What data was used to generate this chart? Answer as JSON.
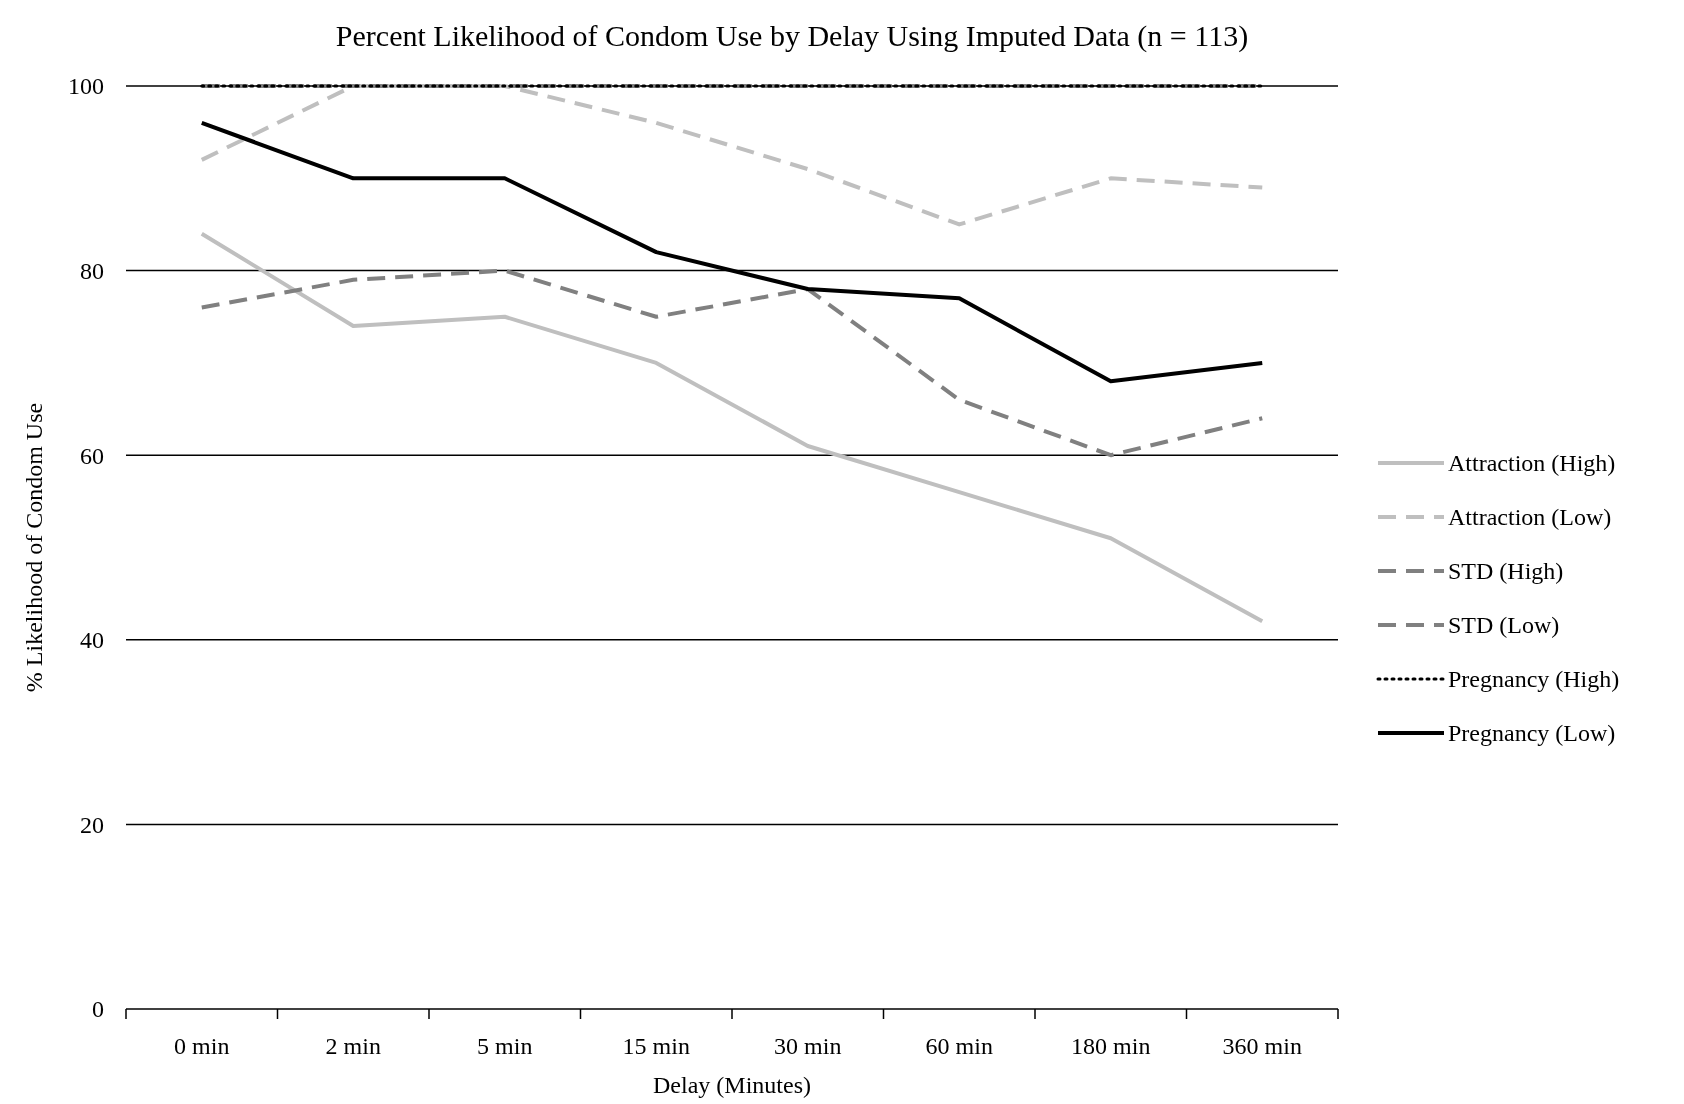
{
  "chart_data": {
    "type": "line",
    "title": "Percent Likelihood of Condom Use by Delay Using Imputed Data (n = 113)",
    "xlabel": "Delay (Minutes)",
    "ylabel": "% Likelihood of Condom Use",
    "categories": [
      "0 min",
      "2 min",
      "5 min",
      "15 min",
      "30 min",
      "60 min",
      "180 min",
      "360 min"
    ],
    "ylim": [
      0,
      100
    ],
    "yticks": [
      0,
      20,
      40,
      60,
      80,
      100
    ],
    "grid": "y",
    "legend": "right",
    "marker": "none",
    "series": [
      {
        "name": "Attraction (High)",
        "color": "#bfbfbf",
        "line_style": "solid",
        "values": [
          84,
          74,
          75,
          70,
          61,
          56,
          51,
          42
        ]
      },
      {
        "name": "Attraction (Low)",
        "color": "#bfbfbf",
        "line_style": "dashed",
        "values": [
          92,
          100,
          100,
          96,
          91,
          85,
          90,
          89
        ]
      },
      {
        "name": "STD (High)",
        "color": "#808080",
        "line_style": "dashed",
        "values": [
          100,
          100,
          100,
          100,
          100,
          100,
          100,
          100
        ]
      },
      {
        "name": "STD (Low)",
        "color": "#808080",
        "line_style": "dashed",
        "values": [
          76,
          79,
          80,
          75,
          78,
          66,
          60,
          64
        ]
      },
      {
        "name": "Pregnancy (High)",
        "color": "#000000",
        "line_style": "dotted",
        "values": [
          100,
          100,
          100,
          100,
          100,
          100,
          100,
          100
        ]
      },
      {
        "name": "Pregnancy (Low)",
        "color": "#000000",
        "line_style": "solid",
        "values": [
          96,
          90,
          90,
          82,
          78,
          77,
          68,
          70
        ]
      }
    ]
  }
}
